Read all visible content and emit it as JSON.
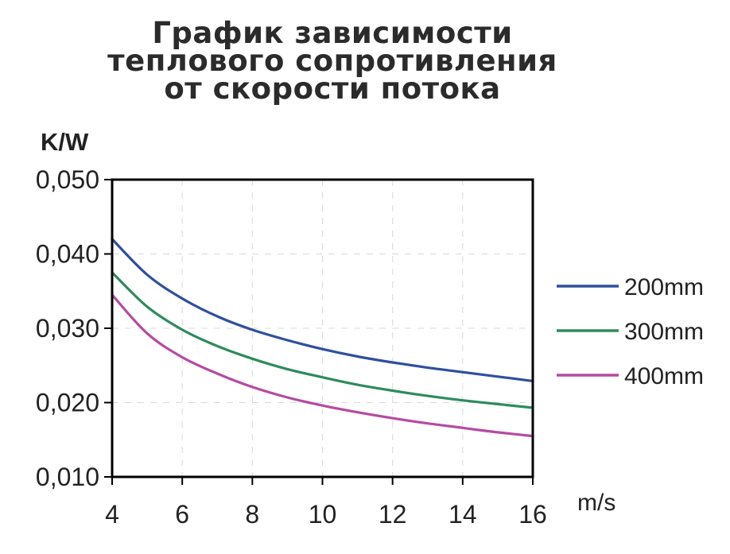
{
  "chart_data": {
    "type": "line",
    "title": [
      "График зависимости",
      "теплового сопротивления",
      "от скорости потока"
    ],
    "ylabel": "K/W",
    "xlabel": "m/s",
    "xlim": [
      4,
      16
    ],
    "ylim": [
      0.01,
      0.05
    ],
    "x_ticks": [
      4,
      6,
      8,
      10,
      12,
      14,
      16
    ],
    "x_tick_labels": [
      "4",
      "6",
      "8",
      "10",
      "12",
      "14",
      "16"
    ],
    "y_ticks": [
      0.01,
      0.02,
      0.03,
      0.04,
      0.05
    ],
    "y_tick_labels": [
      "0,010",
      "0,020",
      "0,030",
      "0,040",
      "0,050"
    ],
    "grid": true,
    "legend_position": "right",
    "series": [
      {
        "name": "200mm",
        "color": "#2f4f9f",
        "x": [
          4,
          5,
          6,
          7,
          8,
          9,
          10,
          11,
          12,
          13,
          14,
          15,
          16
        ],
        "y": [
          0.042,
          0.0372,
          0.034,
          0.0316,
          0.0298,
          0.0284,
          0.0272,
          0.0262,
          0.0254,
          0.0247,
          0.0241,
          0.0235,
          0.0229
        ]
      },
      {
        "name": "300mm",
        "color": "#2e8b5e",
        "x": [
          4,
          5,
          6,
          7,
          8,
          9,
          10,
          11,
          12,
          13,
          14,
          15,
          16
        ],
        "y": [
          0.0375,
          0.0329,
          0.0298,
          0.0276,
          0.0259,
          0.0245,
          0.0234,
          0.0224,
          0.0216,
          0.0209,
          0.0203,
          0.0198,
          0.0193
        ]
      },
      {
        "name": "400mm",
        "color": "#b64ba0",
        "x": [
          4,
          5,
          6,
          7,
          8,
          9,
          10,
          11,
          12,
          13,
          14,
          15,
          16
        ],
        "y": [
          0.0345,
          0.0293,
          0.0261,
          0.0239,
          0.0221,
          0.0207,
          0.0196,
          0.0187,
          0.0179,
          0.0172,
          0.0166,
          0.016,
          0.0155
        ]
      }
    ]
  }
}
